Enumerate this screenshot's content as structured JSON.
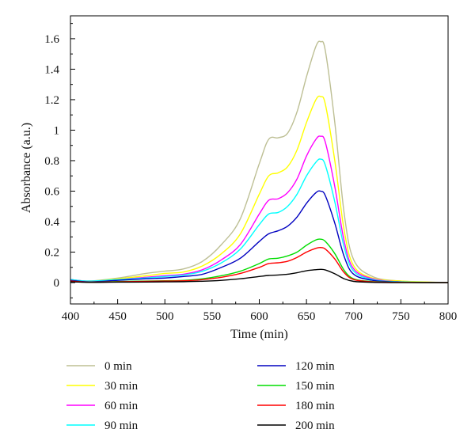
{
  "chart_data": {
    "type": "line",
    "title": "",
    "xlabel": "Time (min)",
    "ylabel": "Absorbance (a.u.)",
    "xlim": [
      400,
      800
    ],
    "ylim": [
      -0.14,
      1.75
    ],
    "x_ticks": [
      400,
      450,
      500,
      550,
      600,
      650,
      700,
      750,
      800
    ],
    "y_ticks": [
      0,
      0.2,
      0.4,
      0.6,
      0.8,
      1,
      1.2,
      1.4,
      1.6
    ],
    "y_tick_labels": [
      "0",
      "0.2",
      "0.4",
      "0.6",
      "0.8",
      "1",
      "1.2",
      "1.4",
      "1.6"
    ],
    "grid": false,
    "legend_position": "bottom",
    "x": [
      400,
      420,
      450,
      480,
      500,
      520,
      540,
      560,
      580,
      600,
      610,
      620,
      630,
      640,
      650,
      660,
      665,
      670,
      680,
      690,
      700,
      720,
      750,
      800
    ],
    "series": [
      {
        "name": "0 min",
        "color": "#bdbf94",
        "values": [
          0.02,
          0.01,
          0.03,
          0.06,
          0.075,
          0.09,
          0.14,
          0.25,
          0.42,
          0.78,
          0.94,
          0.95,
          0.98,
          1.12,
          1.35,
          1.55,
          1.58,
          1.52,
          1.05,
          0.45,
          0.15,
          0.04,
          0.01,
          0.0
        ]
      },
      {
        "name": "30 min",
        "color": "#ffff00",
        "values": [
          0.02,
          0.01,
          0.025,
          0.045,
          0.06,
          0.07,
          0.11,
          0.19,
          0.32,
          0.58,
          0.7,
          0.72,
          0.76,
          0.87,
          1.05,
          1.2,
          1.22,
          1.17,
          0.8,
          0.34,
          0.11,
          0.03,
          0.01,
          0.0
        ]
      },
      {
        "name": "60 min",
        "color": "#ff00ff",
        "values": [
          0.02,
          0.01,
          0.02,
          0.035,
          0.045,
          0.055,
          0.085,
          0.15,
          0.25,
          0.45,
          0.54,
          0.55,
          0.59,
          0.68,
          0.83,
          0.94,
          0.96,
          0.92,
          0.63,
          0.27,
          0.09,
          0.025,
          0.005,
          0.0
        ]
      },
      {
        "name": "90 min",
        "color": "#00ffff",
        "values": [
          0.02,
          0.01,
          0.02,
          0.03,
          0.04,
          0.05,
          0.075,
          0.13,
          0.22,
          0.38,
          0.45,
          0.46,
          0.5,
          0.58,
          0.7,
          0.79,
          0.81,
          0.77,
          0.53,
          0.23,
          0.075,
          0.02,
          0.005,
          0.0
        ]
      },
      {
        "name": "120 min",
        "color": "#0000c0",
        "values": [
          0.015,
          0.005,
          0.015,
          0.025,
          0.03,
          0.04,
          0.055,
          0.1,
          0.16,
          0.27,
          0.32,
          0.34,
          0.37,
          0.43,
          0.52,
          0.59,
          0.6,
          0.57,
          0.39,
          0.17,
          0.055,
          0.015,
          0.003,
          0.0
        ]
      },
      {
        "name": "150 min",
        "color": "#00dd00",
        "values": [
          0.01,
          0.003,
          0.007,
          0.01,
          0.012,
          0.015,
          0.025,
          0.045,
          0.075,
          0.125,
          0.155,
          0.16,
          0.175,
          0.2,
          0.245,
          0.28,
          0.285,
          0.27,
          0.19,
          0.08,
          0.025,
          0.007,
          0.002,
          0.0
        ]
      },
      {
        "name": "180 min",
        "color": "#ff0000",
        "values": [
          0.01,
          0.003,
          0.005,
          0.008,
          0.01,
          0.012,
          0.02,
          0.035,
          0.06,
          0.1,
          0.125,
          0.13,
          0.14,
          0.165,
          0.2,
          0.225,
          0.23,
          0.22,
          0.155,
          0.065,
          0.02,
          0.005,
          0.001,
          0.0
        ]
      },
      {
        "name": "200 min",
        "color": "#000000",
        "values": [
          0.005,
          0.002,
          0.003,
          0.004,
          0.005,
          0.006,
          0.009,
          0.015,
          0.025,
          0.04,
          0.047,
          0.05,
          0.055,
          0.065,
          0.078,
          0.085,
          0.087,
          0.083,
          0.058,
          0.025,
          0.008,
          0.002,
          0.0,
          0.0
        ]
      }
    ]
  }
}
